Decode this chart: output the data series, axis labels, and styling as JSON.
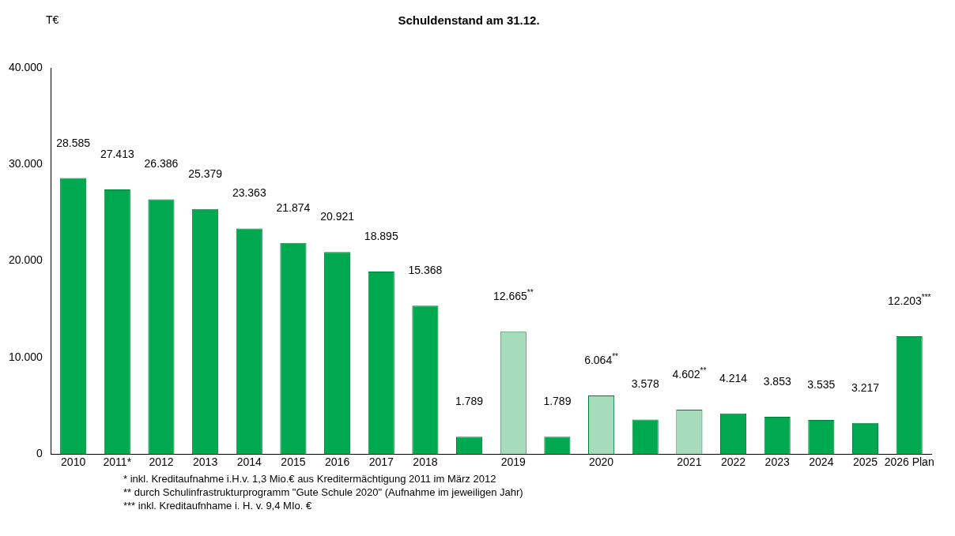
{
  "chart_data": {
    "type": "bar",
    "title": "Schuldenstand am 31.12.",
    "ylabel": "T€",
    "categories": [
      "2010",
      "2011*",
      "2012",
      "2013",
      "2014",
      "2015",
      "2016",
      "2017",
      "2018",
      null,
      "2019",
      null,
      "2020",
      null,
      "2021",
      "2022",
      "2023",
      "2024",
      "2025",
      "2026 Plan"
    ],
    "values": [
      28585,
      27413,
      26386,
      25379,
      23363,
      21874,
      20921,
      18895,
      15368,
      1789,
      12665,
      1789,
      6064,
      3578,
      4602,
      4214,
      3853,
      3535,
      3217,
      12203
    ],
    "colors": [
      "#00a84f",
      "#00a84f",
      "#00a84f",
      "#00a84f",
      "#00a84f",
      "#00a84f",
      "#00a84f",
      "#00a84f",
      "#00a84f",
      "#00a84f",
      "#a6dcbc",
      "#00a84f",
      "#a6dcbc",
      "#00a84f",
      "#a6dcbc",
      "#00a84f",
      "#00a84f",
      "#00a84f",
      "#00a84f",
      "#00a84f"
    ],
    "value_labels": [
      "28.585",
      "27.413",
      "26.386",
      "25.379",
      "23.363",
      "21.874",
      "20.921",
      "18.895",
      "15.368",
      "1.789",
      "12.665$^{**}$",
      "1.789",
      "6.064$^{**}$",
      "3.578",
      "4.602$^{**}$",
      "4.214",
      "3.853",
      "3.535",
      "3.217",
      "12.203$^{***}$"
    ],
    "ylim": [
      0,
      40000
    ],
    "yticks": [
      {
        "value": 0,
        "label": "0"
      },
      {
        "value": 10000,
        "label": "10.000"
      },
      {
        "value": 20000,
        "label": "20.000"
      },
      {
        "value": 30000,
        "label": "30.000"
      },
      {
        "value": 40000,
        "label": "40.000"
      }
    ],
    "grid": false,
    "legend": false,
    "annotations": [
      "* inkl. Kreditaufnahme i.H.v. 1,3 Mio.€ aus Kreditermächtigung 2011 im März 2012",
      "** durch Schulinfrastrukturprogramm \"Gute Schule 2020\" (Aufnahme im jeweiligen Jahr)",
      "*** inkl. Kreditaufnhame i. H. v. 9,4 MIo. €"
    ]
  }
}
